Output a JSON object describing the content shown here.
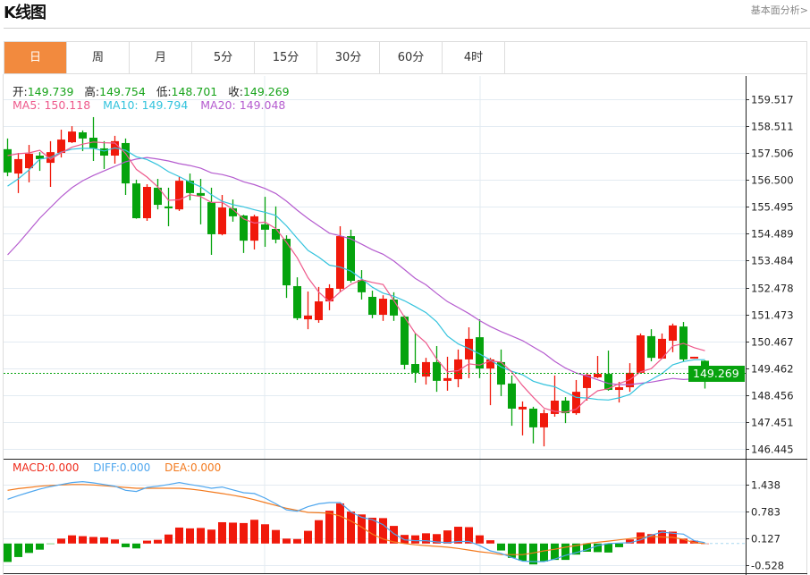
{
  "header": {
    "title": "K线图",
    "more_link": "基本面分析>"
  },
  "tabs": [
    {
      "label": "日",
      "active": true
    },
    {
      "label": "周"
    },
    {
      "label": "月"
    },
    {
      "label": "5分"
    },
    {
      "label": "15分"
    },
    {
      "label": "30分"
    },
    {
      "label": "60分"
    },
    {
      "label": "4时"
    }
  ],
  "ohlc_legend": {
    "open_label": "开:",
    "open": "149.739",
    "high_label": "高:",
    "high": "149.754",
    "low_label": "低:",
    "low": "148.701",
    "close_label": "收:",
    "close": "149.269"
  },
  "ma_legend": {
    "ma5": "MA5: 150.118",
    "ma10": "MA10: 149.794",
    "ma20": "MA20: 149.048"
  },
  "macd_legend": {
    "macd": "MACD:0.000",
    "diff": "DIFF:0.000",
    "dea": "DEA:0.000"
  },
  "current_price_tag": "149.269",
  "colors": {
    "up": "#f0190b",
    "down": "#05a30d",
    "ma5": "#ee5a8c",
    "ma10": "#33c3dd",
    "ma20": "#b55ccf",
    "diff": "#4ea6ee",
    "dea": "#f37a1e",
    "accent": "#f28a3e"
  },
  "chart_data": {
    "type": "candlestick",
    "price_axis": {
      "ticks": [
        "159.517",
        "158.511",
        "157.506",
        "156.500",
        "155.495",
        "154.489",
        "153.484",
        "152.478",
        "151.473",
        "150.467",
        "149.462",
        "148.456",
        "147.451",
        "146.445"
      ],
      "range": [
        146.445,
        159.517
      ]
    },
    "macd_axis": {
      "ticks": [
        "1.438",
        "0.783",
        "0.127",
        "-0.528"
      ]
    },
    "candles": [
      [
        157.65,
        156.78,
        158.05,
        156.64
      ],
      [
        156.74,
        157.28,
        157.51,
        156.01
      ],
      [
        156.94,
        157.48,
        157.81,
        156.41
      ],
      [
        157.41,
        157.28,
        157.54,
        156.84
      ],
      [
        157.14,
        157.54,
        157.95,
        156.24
      ],
      [
        157.51,
        158.01,
        158.38,
        157.34
      ],
      [
        157.91,
        158.31,
        158.51,
        157.88
      ],
      [
        158.28,
        158.05,
        158.35,
        157.58
      ],
      [
        158.08,
        157.68,
        158.85,
        157.21
      ],
      [
        157.68,
        157.41,
        157.95,
        156.91
      ],
      [
        157.41,
        157.95,
        158.15,
        157.11
      ],
      [
        157.88,
        156.37,
        158.05,
        155.94
      ],
      [
        156.37,
        155.07,
        156.51,
        155.05
      ],
      [
        155.07,
        156.24,
        156.34,
        154.97
      ],
      [
        156.21,
        155.57,
        156.54,
        155.4
      ],
      [
        155.51,
        155.44,
        156.21,
        154.77
      ],
      [
        155.4,
        156.47,
        156.61,
        155.34
      ],
      [
        156.47,
        156.01,
        156.74,
        155.74
      ],
      [
        156.01,
        155.91,
        156.54,
        154.84
      ],
      [
        155.67,
        154.47,
        156.21,
        153.7
      ],
      [
        154.47,
        155.47,
        155.94,
        154.43
      ],
      [
        155.44,
        155.14,
        155.77,
        154.94
      ],
      [
        155.17,
        154.23,
        155.2,
        153.77
      ],
      [
        154.23,
        155.14,
        155.2,
        153.9
      ],
      [
        154.84,
        154.64,
        155.87,
        154.0
      ],
      [
        154.67,
        154.27,
        155.51,
        154.13
      ],
      [
        154.3,
        152.56,
        154.43,
        152.09
      ],
      [
        152.53,
        151.33,
        152.86,
        151.26
      ],
      [
        151.29,
        151.43,
        152.33,
        150.92
      ],
      [
        151.26,
        151.96,
        152.5,
        151.16
      ],
      [
        151.96,
        152.46,
        152.6,
        151.63
      ],
      [
        152.43,
        154.4,
        154.77,
        152.33
      ],
      [
        154.4,
        152.73,
        154.64,
        152.66
      ],
      [
        152.76,
        152.3,
        153.13,
        152.03
      ],
      [
        152.13,
        151.46,
        152.36,
        151.33
      ],
      [
        151.46,
        152.06,
        152.19,
        151.23
      ],
      [
        152.03,
        151.43,
        152.3,
        151.23
      ],
      [
        151.39,
        149.59,
        151.43,
        149.42
      ],
      [
        149.62,
        149.29,
        150.76,
        148.92
      ],
      [
        149.15,
        149.69,
        149.85,
        148.85
      ],
      [
        149.69,
        148.99,
        150.29,
        148.58
      ],
      [
        148.99,
        149.09,
        149.89,
        148.62
      ],
      [
        149.05,
        149.79,
        150.16,
        148.75
      ],
      [
        149.79,
        150.56,
        150.99,
        149.09
      ],
      [
        150.62,
        149.45,
        151.29,
        149.09
      ],
      [
        149.45,
        149.79,
        149.85,
        148.08
      ],
      [
        149.69,
        148.85,
        150.16,
        148.42
      ],
      [
        148.89,
        147.95,
        149.19,
        147.31
      ],
      [
        147.92,
        148.02,
        148.22,
        146.95
      ],
      [
        147.95,
        147.25,
        148.02,
        146.65
      ],
      [
        147.25,
        147.78,
        147.92,
        146.54
      ],
      [
        147.75,
        148.25,
        149.19,
        147.65
      ],
      [
        148.25,
        147.78,
        148.38,
        147.41
      ],
      [
        147.78,
        148.58,
        149.02,
        147.72
      ],
      [
        148.72,
        149.22,
        149.29,
        148.25
      ],
      [
        149.12,
        149.25,
        149.92,
        149.09
      ],
      [
        149.25,
        148.65,
        150.12,
        148.62
      ],
      [
        148.65,
        148.75,
        148.95,
        148.18
      ],
      [
        148.75,
        149.29,
        149.65,
        148.58
      ],
      [
        149.29,
        150.69,
        150.76,
        149.29
      ],
      [
        150.66,
        149.85,
        150.92,
        149.72
      ],
      [
        149.82,
        150.56,
        150.76,
        149.82
      ],
      [
        150.49,
        151.06,
        151.13,
        150.06
      ],
      [
        151.02,
        149.79,
        151.19,
        149.72
      ],
      [
        149.82,
        149.89,
        149.89,
        149.82
      ],
      [
        149.739,
        149.269,
        149.754,
        148.701
      ]
    ],
    "candle_fields": [
      "open",
      "close",
      "high",
      "low"
    ],
    "ma5_head": [
      157.41,
      157.48,
      157.51,
      157.61
    ],
    "ma10_head": [
      156.27,
      156.54,
      156.88,
      157.28,
      157.34,
      157.54,
      157.65,
      157.68,
      157.68
    ],
    "ma20_head": [
      153.7,
      154.13,
      154.6,
      155.07,
      155.47,
      155.87,
      156.21,
      156.47,
      156.67,
      156.84,
      157.01,
      157.18,
      157.28,
      157.34,
      157.28,
      157.21,
      157.11,
      157.04,
      156.94
    ],
    "macd_hist": [
      -0.45,
      -0.33,
      -0.23,
      -0.15,
      -0.01,
      0.12,
      0.2,
      0.18,
      0.16,
      0.15,
      0.1,
      -0.09,
      -0.12,
      0.07,
      0.09,
      0.22,
      0.39,
      0.37,
      0.38,
      0.34,
      0.52,
      0.51,
      0.5,
      0.58,
      0.47,
      0.33,
      0.12,
      0.11,
      0.31,
      0.57,
      0.8,
      0.98,
      0.78,
      0.71,
      0.63,
      0.62,
      0.43,
      0.21,
      0.2,
      0.25,
      0.23,
      0.32,
      0.41,
      0.4,
      0.2,
      0.08,
      -0.17,
      -0.35,
      -0.42,
      -0.51,
      -0.44,
      -0.4,
      -0.4,
      -0.27,
      -0.2,
      -0.21,
      -0.22,
      -0.09,
      0.1,
      0.27,
      0.23,
      0.32,
      0.29,
      0.12,
      0.07,
      0.0
    ],
    "diff": [
      1.08,
      1.17,
      1.25,
      1.33,
      1.39,
      1.44,
      1.49,
      1.51,
      1.48,
      1.44,
      1.4,
      1.3,
      1.27,
      1.37,
      1.4,
      1.44,
      1.49,
      1.44,
      1.4,
      1.35,
      1.38,
      1.31,
      1.24,
      1.22,
      1.11,
      0.97,
      0.82,
      0.79,
      0.9,
      0.97,
      1.0,
      1.0,
      0.77,
      0.64,
      0.58,
      0.46,
      0.24,
      0.09,
      0.07,
      0.07,
      0.04,
      0.02,
      0.05,
      0.05,
      -0.05,
      -0.18,
      -0.24,
      -0.34,
      -0.43,
      -0.44,
      -0.44,
      -0.38,
      -0.29,
      -0.22,
      -0.15,
      -0.05,
      0.0,
      0.01,
      0.02,
      0.09,
      0.2,
      0.28,
      0.25,
      0.23,
      0.07,
      0.02
    ],
    "dea": [
      1.3,
      1.34,
      1.37,
      1.4,
      1.42,
      1.43,
      1.44,
      1.44,
      1.43,
      1.41,
      1.39,
      1.37,
      1.35,
      1.35,
      1.35,
      1.35,
      1.35,
      1.33,
      1.3,
      1.26,
      1.22,
      1.18,
      1.13,
      1.07,
      1.0,
      0.93,
      0.86,
      0.81,
      0.76,
      0.75,
      0.74,
      0.67,
      0.55,
      0.4,
      0.23,
      0.11,
      0.04,
      0.0,
      -0.03,
      -0.05,
      -0.07,
      -0.09,
      -0.12,
      -0.16,
      -0.2,
      -0.23,
      -0.27,
      -0.27,
      -0.27,
      -0.23,
      -0.18,
      -0.14,
      -0.09,
      -0.05,
      0.0,
      0.03,
      0.06,
      0.09,
      0.12,
      0.15,
      0.17,
      0.16,
      0.15,
      0.1,
      0.02,
      0.0
    ]
  }
}
